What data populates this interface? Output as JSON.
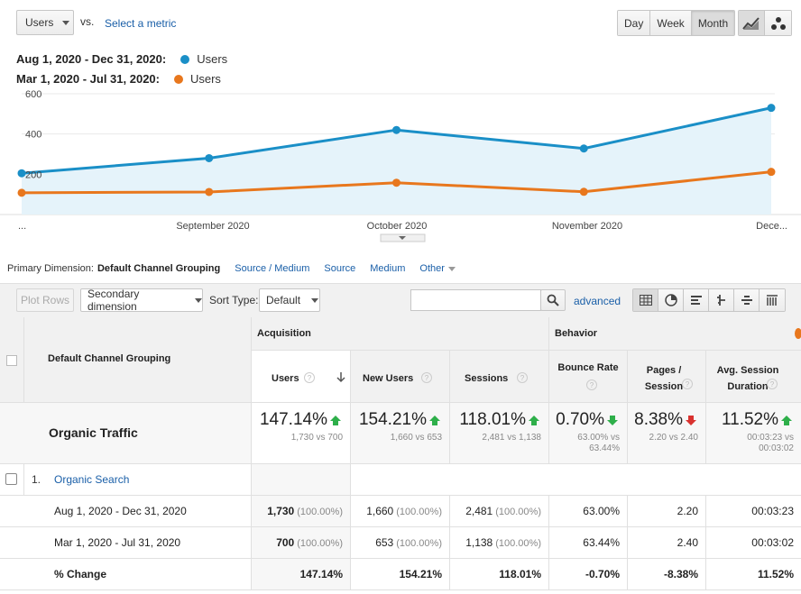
{
  "controls": {
    "metric": "Users",
    "vs": "vs.",
    "select_metric": "Select a metric",
    "periods": [
      "Day",
      "Week",
      "Month"
    ],
    "active_period": "Month",
    "chart_types": [
      "line-chart-icon",
      "motion-chart-icon"
    ]
  },
  "legend": [
    {
      "range": "Aug 1, 2020 - Dec 31, 2020:",
      "metric": "Users",
      "color": "#1a8fc7"
    },
    {
      "range": "Mar 1, 2020 - Jul 31, 2020:",
      "metric": "Users",
      "color": "#e8771d"
    }
  ],
  "chart_data": {
    "type": "area",
    "y_ticks": [
      "600",
      "400",
      "200"
    ],
    "x_labels": [
      "...",
      "September 2020",
      "October 2020",
      "November 2020",
      "Dece..."
    ],
    "ylim": [
      0,
      600
    ],
    "series": [
      {
        "name": "Users",
        "period": "Aug 1, 2020 - Dec 31, 2020",
        "color": "#1a8fc7",
        "values": [
          205,
          280,
          420,
          328,
          530
        ]
      },
      {
        "name": "Users",
        "period": "Mar 1, 2020 - Jul 31, 2020",
        "color": "#e8771d",
        "values": [
          108,
          112,
          158,
          113,
          212
        ]
      }
    ]
  },
  "dimensions": {
    "label": "Primary Dimension:",
    "items": [
      "Default Channel Grouping",
      "Source / Medium",
      "Source",
      "Medium",
      "Other"
    ],
    "active": "Default Channel Grouping"
  },
  "toolbar": {
    "plot_rows": "Plot Rows",
    "secondary_dimension": "Secondary dimension",
    "sort_type_label": "Sort Type:",
    "sort_type": "Default",
    "search_placeholder": "",
    "advanced": "advanced",
    "views": [
      "table-view-icon",
      "pie-view-icon",
      "performance-view-icon",
      "comparison-view-icon",
      "term-cloud-icon",
      "pivot-view-icon"
    ]
  },
  "table": {
    "dimension_header": "Default Channel Grouping",
    "groups": {
      "acquisition": "Acquisition",
      "behavior": "Behavior"
    },
    "columns": [
      "Users",
      "New Users",
      "Sessions",
      "Bounce Rate",
      "Pages / Session",
      "Avg. Session Duration"
    ],
    "summary": {
      "label": "Organic Traffic",
      "cells": [
        {
          "pct": "147.14%",
          "dir": "up-good",
          "sub": "1,730 vs 700"
        },
        {
          "pct": "154.21%",
          "dir": "up-good",
          "sub": "1,660 vs 653"
        },
        {
          "pct": "118.01%",
          "dir": "up-good",
          "sub": "2,481 vs 1,138"
        },
        {
          "pct": "0.70%",
          "dir": "down-good",
          "sub": "63.00% vs 63.44%"
        },
        {
          "pct": "8.38%",
          "dir": "down-bad",
          "sub": "2.20 vs 2.40"
        },
        {
          "pct": "11.52%",
          "dir": "up-good",
          "sub": "00:03:23 vs 00:03:02"
        }
      ]
    },
    "row": {
      "index": "1.",
      "label": "Organic Search"
    },
    "subrows": [
      {
        "label": "Aug 1, 2020 - Dec 31, 2020",
        "values": [
          {
            "v": "1,730",
            "p": "(100.00%)"
          },
          {
            "v": "1,660",
            "p": "(100.00%)"
          },
          {
            "v": "2,481",
            "p": "(100.00%)"
          },
          {
            "v": "63.00%",
            "p": ""
          },
          {
            "v": "2.20",
            "p": ""
          },
          {
            "v": "00:03:23",
            "p": ""
          }
        ]
      },
      {
        "label": "Mar 1, 2020 - Jul 31, 2020",
        "values": [
          {
            "v": "700",
            "p": "(100.00%)"
          },
          {
            "v": "653",
            "p": "(100.00%)"
          },
          {
            "v": "1,138",
            "p": "(100.00%)"
          },
          {
            "v": "63.44%",
            "p": ""
          },
          {
            "v": "2.40",
            "p": ""
          },
          {
            "v": "00:03:02",
            "p": ""
          }
        ]
      },
      {
        "label": "% Change",
        "values": [
          {
            "v": "147.14%",
            "p": ""
          },
          {
            "v": "154.21%",
            "p": ""
          },
          {
            "v": "118.01%",
            "p": ""
          },
          {
            "v": "-0.70%",
            "p": ""
          },
          {
            "v": "-8.38%",
            "p": ""
          },
          {
            "v": "11.52%",
            "p": ""
          }
        ]
      }
    ]
  }
}
